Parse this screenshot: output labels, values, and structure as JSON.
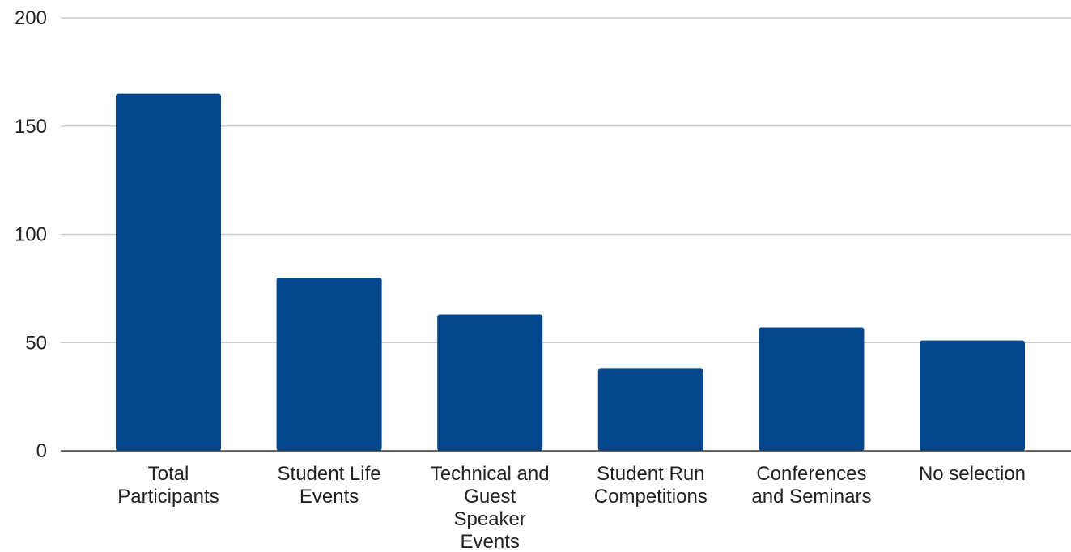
{
  "chart_data": {
    "type": "bar",
    "categories": [
      [
        "Total",
        "Participants"
      ],
      [
        "Student Life",
        "Events"
      ],
      [
        "Technical and",
        "Guest",
        "Speaker",
        "Events"
      ],
      [
        "Student Run",
        "Competitions"
      ],
      [
        "Conferences",
        "and Seminars"
      ],
      [
        "No selection"
      ]
    ],
    "values": [
      165,
      80,
      63,
      38,
      57,
      51
    ],
    "ylim": [
      0,
      200
    ],
    "yticks": [
      0,
      50,
      100,
      150,
      200
    ],
    "title": "",
    "xlabel": "",
    "ylabel": "",
    "grid": true,
    "bar_color": "#03468c"
  }
}
